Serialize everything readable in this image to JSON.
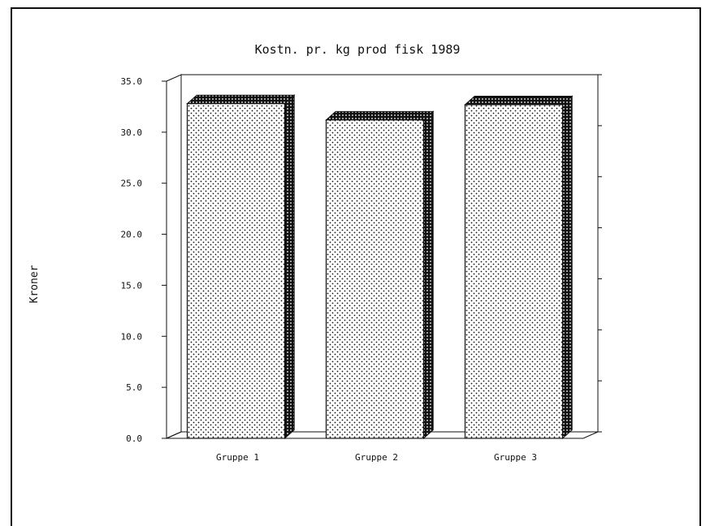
{
  "chart_data": {
    "type": "bar",
    "title": "Kostn. pr. kg prod fisk 1989",
    "xlabel": "",
    "ylabel": "Kroner",
    "categories": [
      "Gruppe 1",
      "Gruppe 2",
      "Gruppe 3"
    ],
    "values": [
      32.8,
      31.2,
      32.7
    ],
    "ylim": [
      0,
      35
    ],
    "yticks": [
      "0.0",
      "5.0",
      "10.0",
      "15.0",
      "20.0",
      "25.0",
      "30.0",
      "35.0"
    ],
    "grid": false,
    "legend": "none",
    "style": "3d-bar",
    "colors": {
      "bar_fill": "#ffffff",
      "bar_dots": "#111111",
      "frame": "#111111"
    }
  }
}
